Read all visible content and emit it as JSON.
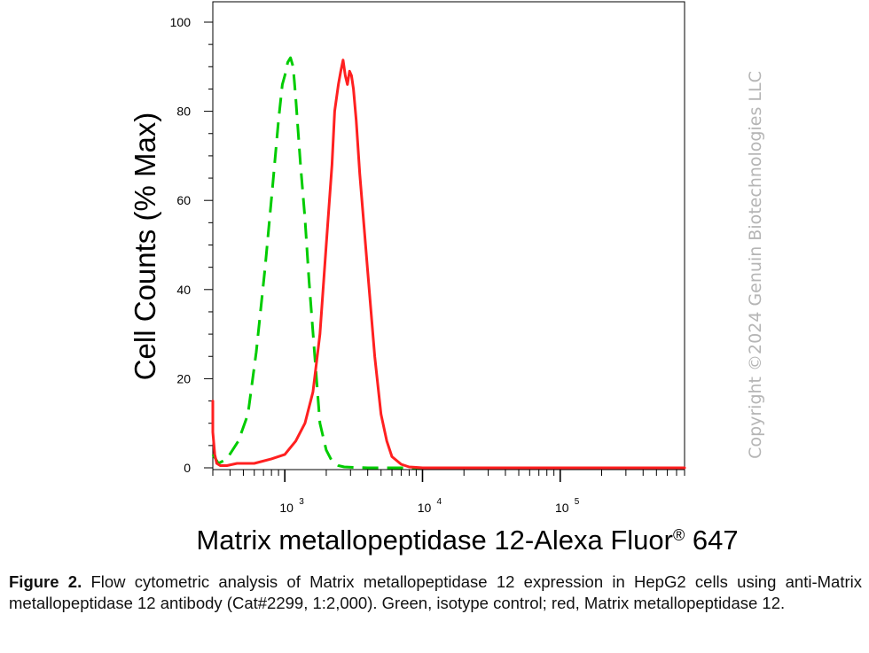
{
  "chart_data": {
    "type": "line",
    "title": "",
    "xlabel": "Matrix metallopeptidase 12-Alexa Fluor",
    "xlabel_sup": "®",
    "xlabel_suffix": " 647",
    "ylabel": "Cell Counts (% Max)",
    "xscale": "log",
    "xlim": [
      300,
      800000
    ],
    "ylim": [
      0,
      100
    ],
    "grid": false,
    "y_ticks": [
      "0",
      "20",
      "40",
      "60",
      "80",
      "100"
    ],
    "x_ticks": [
      {
        "base": "10",
        "exp": "3",
        "value": 1000
      },
      {
        "base": "10",
        "exp": "4",
        "value": 10000
      },
      {
        "base": "10",
        "exp": "5",
        "value": 100000
      }
    ],
    "series": [
      {
        "color": "#00cc00",
        "dash": "dashed",
        "x": [
          300,
          330,
          380,
          460,
          540,
          620,
          720,
          820,
          900,
          960,
          1000,
          1050,
          1100,
          1150,
          1200,
          1300,
          1400,
          1500,
          1650,
          1800,
          2000,
          2200,
          2450,
          2700,
          3200,
          4000,
          6000,
          10000,
          100000,
          800000
        ],
        "y": [
          3,
          1,
          2,
          6,
          12,
          26,
          45,
          64,
          78,
          86,
          88,
          91,
          92,
          90,
          83,
          68,
          56,
          42,
          25,
          10,
          4,
          1.5,
          0.5,
          0.2,
          0.1,
          0,
          0,
          0,
          0,
          0
        ]
      },
      {
        "color": "#ff2020",
        "dash": "solid",
        "x": [
          290,
          300,
          310,
          320,
          340,
          380,
          450,
          600,
          800,
          1000,
          1200,
          1400,
          1600,
          1800,
          2000,
          2200,
          2300,
          2450,
          2550,
          2650,
          2750,
          2850,
          2950,
          3050,
          3150,
          3300,
          3500,
          4000,
          4500,
          5000,
          5500,
          6000,
          7000,
          8000,
          9000,
          10000,
          100000,
          800000
        ],
        "y": [
          15,
          8,
          3,
          1,
          0.5,
          0.5,
          1,
          1,
          2,
          3,
          6,
          10,
          17,
          30,
          50,
          68,
          80,
          86,
          89,
          91.5,
          88,
          86,
          89,
          88,
          85,
          78,
          66,
          44,
          25,
          12,
          6,
          2.5,
          0.8,
          0.2,
          0.1,
          0,
          0,
          0
        ]
      }
    ]
  },
  "watermark": "Copyright ©2024 Genuin Biotechnologies LLC",
  "caption": {
    "bold": "Figure 2.",
    "text": " Flow cytometric analysis of Matrix metallopeptidase 12 expression in HepG2 cells using anti-Matrix metallopeptidase 12 antibody (Cat#2299, 1:2,000). Green, isotype control; red, Matrix metallopeptidase 12."
  }
}
